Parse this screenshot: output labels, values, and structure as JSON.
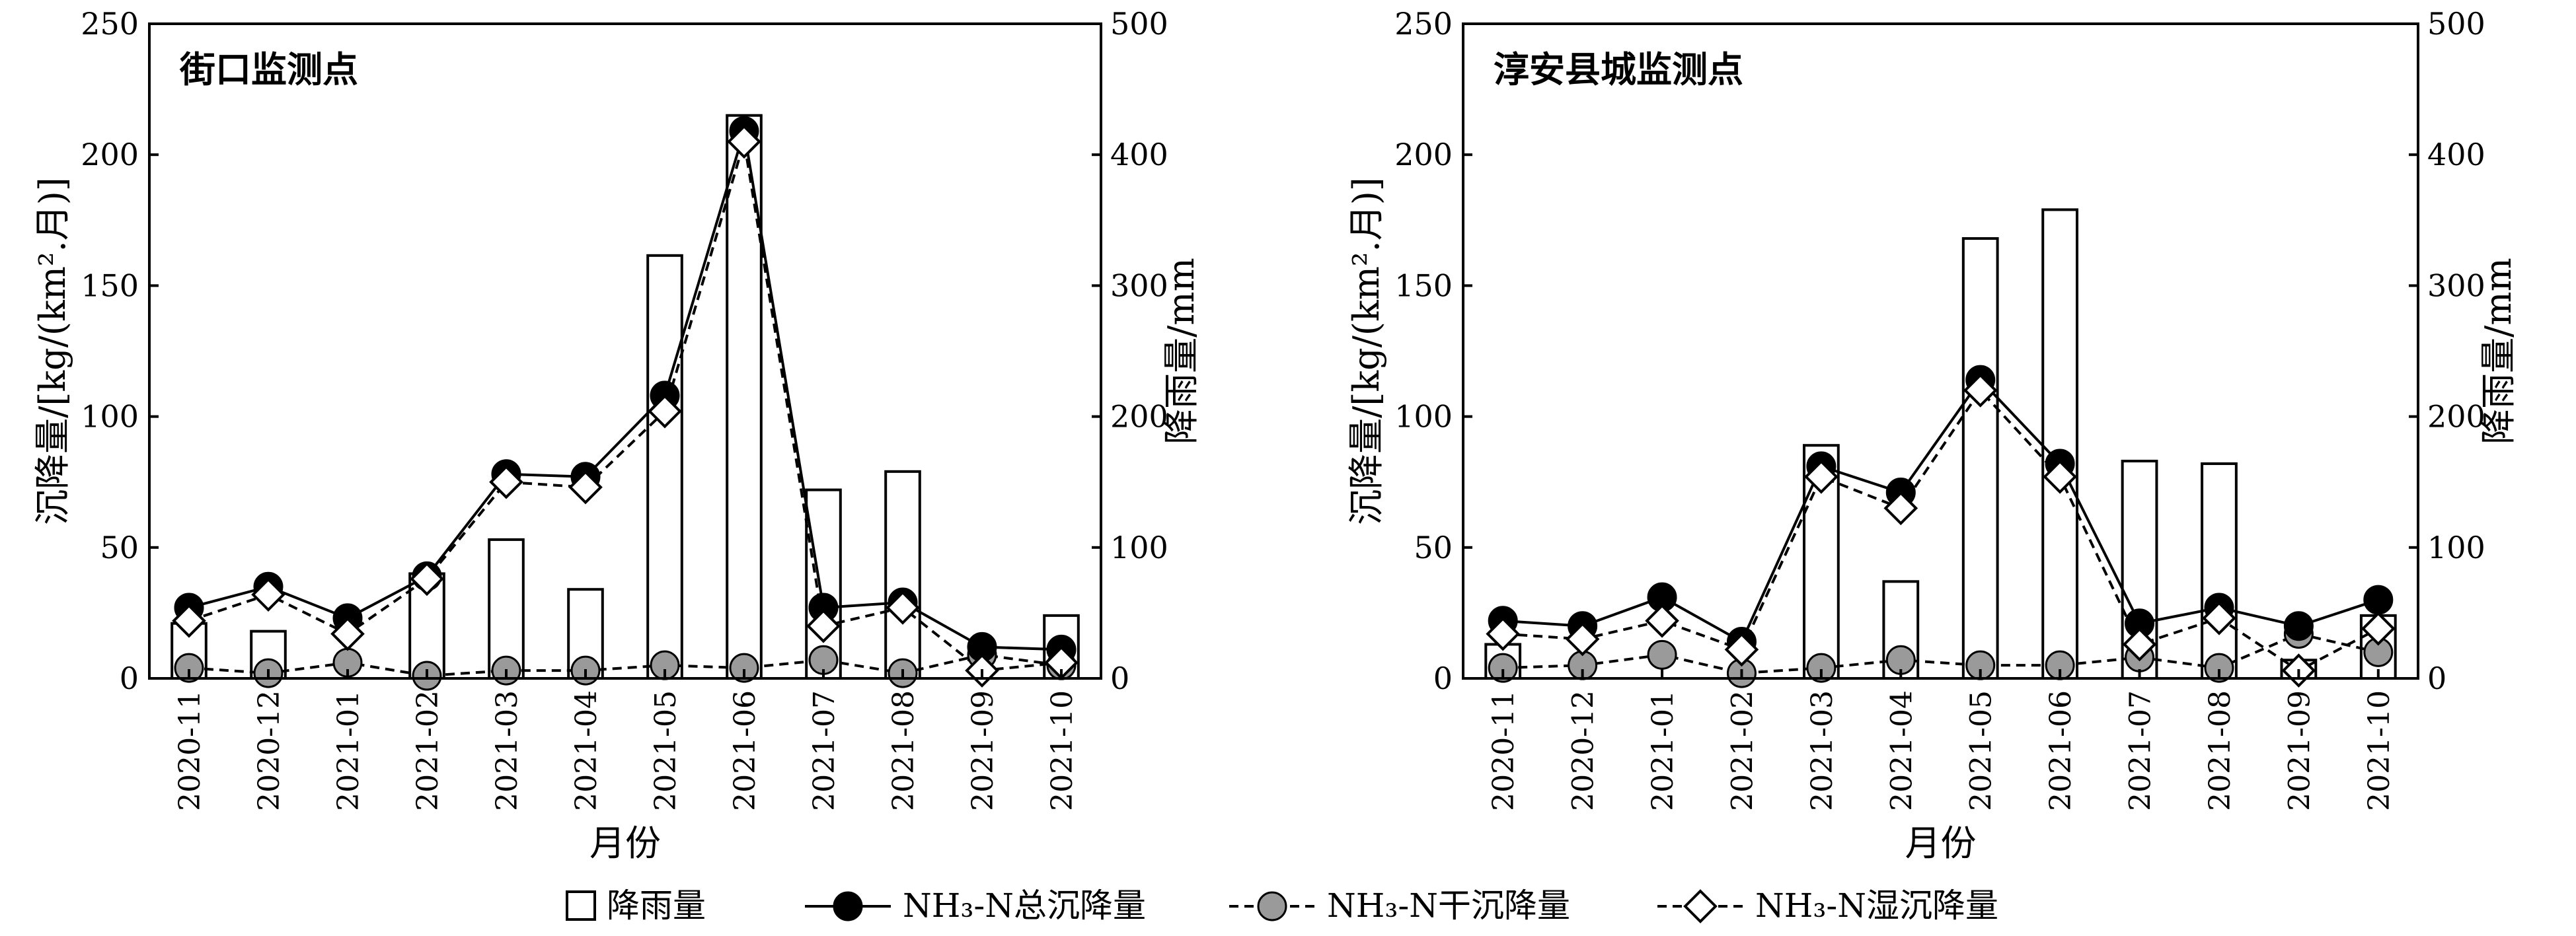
{
  "chart_data": [
    {
      "type": "bar",
      "title": "街口监测点",
      "xlabel": "月份",
      "ylabel": "沉降量/[kg/(km².月)]",
      "y2label": "降雨量/mm",
      "ylim": [
        0,
        250
      ],
      "y2lim": [
        0,
        500
      ],
      "yticks": [
        "0",
        "50",
        "100",
        "150",
        "200",
        "250"
      ],
      "y2ticks": [
        "0",
        "100",
        "200",
        "300",
        "400",
        "500"
      ],
      "categories": [
        "2020-11",
        "2020-12",
        "2021-01",
        "2021-02",
        "2021-03",
        "2021-04",
        "2021-05",
        "2021-06",
        "2021-07",
        "2021-08",
        "2021-09",
        "2021-10"
      ],
      "series": [
        {
          "name": "降雨量",
          "kind": "bar",
          "axis": "right",
          "values": [
            42,
            36,
            0,
            80,
            106,
            68,
            323,
            430,
            144,
            158,
            0,
            48
          ]
        },
        {
          "name": "NH₃-N总沉降量",
          "kind": "line-solid",
          "marker": "circle-black",
          "axis": "left",
          "values": [
            27,
            35,
            23,
            39,
            78,
            77,
            108,
            209,
            27,
            29,
            12,
            11
          ]
        },
        {
          "name": "NH₃-N干沉降量",
          "kind": "line-dashed",
          "marker": "circle-gray",
          "axis": "left",
          "values": [
            4,
            2,
            6,
            1,
            3,
            3,
            5,
            4,
            7,
            2,
            9,
            5
          ]
        },
        {
          "name": "NH₃-N湿沉降量",
          "kind": "line-dashed",
          "marker": "diamond-white",
          "axis": "left",
          "values": [
            22,
            32,
            17,
            38,
            75,
            73,
            102,
            205,
            20,
            27,
            3,
            6
          ]
        }
      ]
    },
    {
      "type": "bar",
      "title": "淳安县城监测点",
      "xlabel": "月份",
      "ylabel": "沉降量/[kg/(km².月)]",
      "y2label": "降雨量/mm",
      "ylim": [
        0,
        250
      ],
      "y2lim": [
        0,
        500
      ],
      "yticks": [
        "0",
        "50",
        "100",
        "150",
        "200",
        "250"
      ],
      "y2ticks": [
        "0",
        "100",
        "200",
        "300",
        "400",
        "500"
      ],
      "categories": [
        "2020-11",
        "2020-12",
        "2021-01",
        "2021-02",
        "2021-03",
        "2021-04",
        "2021-05",
        "2021-06",
        "2021-07",
        "2021-08",
        "2021-09",
        "2021-10"
      ],
      "series": [
        {
          "name": "降雨量",
          "kind": "bar",
          "axis": "right",
          "values": [
            26,
            0,
            0,
            0,
            178,
            74,
            336,
            358,
            166,
            164,
            14,
            48
          ]
        },
        {
          "name": "NH₃-N总沉降量",
          "kind": "line-solid",
          "marker": "circle-black",
          "axis": "left",
          "values": [
            22,
            20,
            31,
            14,
            81,
            71,
            114,
            82,
            21,
            27,
            20,
            30
          ]
        },
        {
          "name": "NH₃-N干沉降量",
          "kind": "line-dashed",
          "marker": "circle-gray",
          "axis": "left",
          "values": [
            4,
            5,
            9,
            2,
            4,
            7,
            5,
            5,
            8,
            4,
            17,
            10
          ]
        },
        {
          "name": "NH₃-N湿沉降量",
          "kind": "line-dashed",
          "marker": "diamond-white",
          "axis": "left",
          "values": [
            17,
            15,
            22,
            11,
            77,
            65,
            110,
            77,
            13,
            23,
            3,
            19
          ]
        }
      ]
    }
  ],
  "legend": {
    "placement": "bottom",
    "items": [
      {
        "key": "rain",
        "label": "降雨量"
      },
      {
        "key": "total",
        "label": "NH₃-N总沉降量"
      },
      {
        "key": "dry",
        "label": "NH₃-N干沉降量"
      },
      {
        "key": "wet",
        "label": "NH₃-N湿沉降量"
      }
    ]
  },
  "colors": {
    "bar_fill": "#ffffff",
    "total_marker": "#000000",
    "dry_marker": "#9a9a9a",
    "wet_marker": "#ffffff",
    "line": "#000000"
  }
}
